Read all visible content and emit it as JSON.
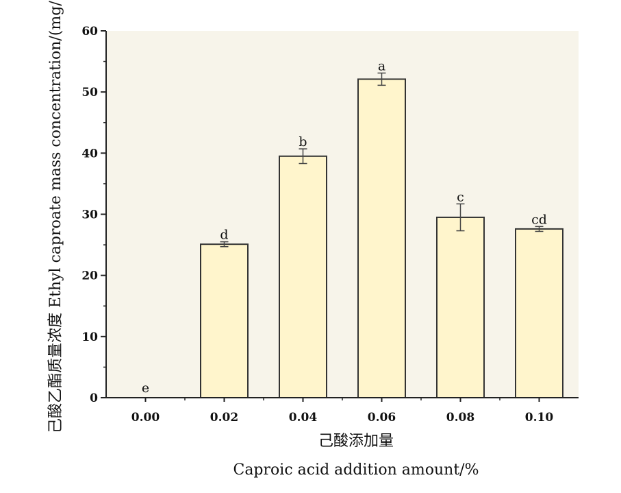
{
  "chart_data": {
    "type": "bar",
    "categories": [
      "0.00",
      "0.02",
      "0.04",
      "0.06",
      "0.08",
      "0.10"
    ],
    "values": [
      0,
      25.1,
      39.5,
      52.1,
      29.5,
      27.6
    ],
    "errors": [
      0,
      0.4,
      1.2,
      1.0,
      2.2,
      0.4
    ],
    "significance": [
      "e",
      "d",
      "b",
      "a",
      "c",
      "cd"
    ],
    "xlabel_cn": "己酸添加量",
    "xlabel_en": "Caproic acid addition amount/%",
    "ylabel": "己酸乙酯质量浓度 Ethyl caproate mass concentration/(mg/L)",
    "ylim": [
      0,
      60
    ],
    "yticks": [
      0,
      10,
      20,
      30,
      40,
      50,
      60
    ],
    "bar_color": "#fff5cc",
    "bar_edge": "#333333",
    "plot_bg": "#f7f4ea",
    "grid": false,
    "legend": "none"
  }
}
